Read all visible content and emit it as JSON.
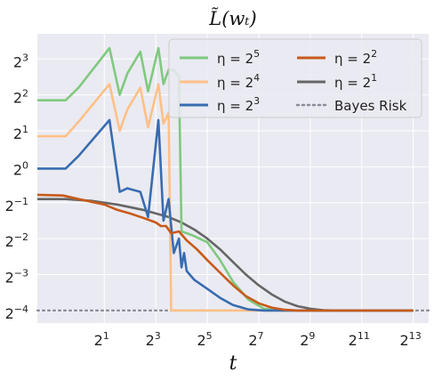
{
  "chart_data": {
    "type": "line",
    "title": "L̃(wₜ)",
    "xlabel": "t",
    "ylabel": "",
    "xscale": "log2",
    "yscale": "log2",
    "xlim_log2": [
      -1.6,
      13.6
    ],
    "ylim_log2": [
      -4.35,
      3.7
    ],
    "x_ticks": [
      {
        "exp": 1,
        "label": "2",
        "sup": "1"
      },
      {
        "exp": 3,
        "label": "2",
        "sup": "3"
      },
      {
        "exp": 5,
        "label": "2",
        "sup": "5"
      },
      {
        "exp": 7,
        "label": "2",
        "sup": "7"
      },
      {
        "exp": 9,
        "label": "2",
        "sup": "9"
      },
      {
        "exp": 11,
        "label": "2",
        "sup": "11"
      },
      {
        "exp": 13,
        "label": "2",
        "sup": "13"
      }
    ],
    "y_ticks": [
      {
        "exp": 3,
        "label": "2",
        "sup": "3"
      },
      {
        "exp": 2,
        "label": "2",
        "sup": "2"
      },
      {
        "exp": 1,
        "label": "2",
        "sup": "1"
      },
      {
        "exp": 0,
        "label": "2",
        "sup": "0"
      },
      {
        "exp": -1,
        "label": "2",
        "sup": "−1"
      },
      {
        "exp": -2,
        "label": "2",
        "sup": "−2"
      },
      {
        "exp": -3,
        "label": "2",
        "sup": "−3"
      },
      {
        "exp": -4,
        "label": "2",
        "sup": "−4"
      }
    ],
    "grid": true,
    "background": "#eaeaf2",
    "legend_position": "top-right",
    "series": [
      {
        "name": "η = 2⁵",
        "label_base": "η = 2",
        "label_sup": "5",
        "color": "#7fc97f",
        "style": "solid",
        "points_log2": [
          [
            -1.6,
            1.85
          ],
          [
            -0.5,
            1.85
          ],
          [
            0,
            2.2
          ],
          [
            1.2,
            3.3
          ],
          [
            1.6,
            2.0
          ],
          [
            1.9,
            2.6
          ],
          [
            2.4,
            3.2
          ],
          [
            2.7,
            2.1
          ],
          [
            3.1,
            3.3
          ],
          [
            3.3,
            2.3
          ],
          [
            3.5,
            2.7
          ],
          [
            3.7,
            2.7
          ],
          [
            3.9,
            2.5
          ],
          [
            4.0,
            -1.8
          ],
          [
            4.4,
            -1.9
          ],
          [
            5.0,
            -2.1
          ],
          [
            5.5,
            -2.6
          ],
          [
            6.0,
            -3.2
          ],
          [
            6.6,
            -3.7
          ],
          [
            7.2,
            -3.95
          ],
          [
            8.0,
            -4.0
          ],
          [
            13.0,
            -4.0
          ]
        ]
      },
      {
        "name": "η = 2⁴",
        "label_base": "η = 2",
        "label_sup": "4",
        "color": "#fdc086",
        "style": "solid",
        "points_log2": [
          [
            -1.6,
            0.85
          ],
          [
            -0.5,
            0.85
          ],
          [
            0,
            1.25
          ],
          [
            1.2,
            2.3
          ],
          [
            1.6,
            1.0
          ],
          [
            1.9,
            1.6
          ],
          [
            2.4,
            2.2
          ],
          [
            2.7,
            1.1
          ],
          [
            3.1,
            2.3
          ],
          [
            3.3,
            1.2
          ],
          [
            3.5,
            1.5
          ],
          [
            3.6,
            -4.0
          ],
          [
            13.0,
            -4.0
          ]
        ]
      },
      {
        "name": "η = 2³",
        "label_base": "η = 2",
        "label_sup": "3",
        "color": "#386cb0",
        "style": "solid",
        "points_log2": [
          [
            -1.6,
            -0.05
          ],
          [
            -0.5,
            -0.05
          ],
          [
            0,
            0.3
          ],
          [
            1.2,
            1.3
          ],
          [
            1.6,
            -0.7
          ],
          [
            1.9,
            -0.6
          ],
          [
            2.4,
            -0.7
          ],
          [
            2.7,
            -1.4
          ],
          [
            3.1,
            1.3
          ],
          [
            3.3,
            -1.5
          ],
          [
            3.5,
            -0.9
          ],
          [
            3.7,
            -2.4
          ],
          [
            3.9,
            -2.0
          ],
          [
            4.0,
            -2.8
          ],
          [
            4.1,
            -2.4
          ],
          [
            4.2,
            -2.9
          ],
          [
            4.5,
            -3.15
          ],
          [
            5.0,
            -3.4
          ],
          [
            5.5,
            -3.65
          ],
          [
            6.0,
            -3.85
          ],
          [
            6.6,
            -3.97
          ],
          [
            7.2,
            -4.0
          ],
          [
            13.0,
            -4.0
          ]
        ]
      },
      {
        "name": "η = 2²",
        "label_base": "η = 2",
        "label_sup": "2",
        "color": "#c85a1a",
        "style": "solid",
        "points_log2": [
          [
            -1.6,
            -0.78
          ],
          [
            -0.6,
            -0.8
          ],
          [
            0,
            -0.9
          ],
          [
            1.0,
            -1.05
          ],
          [
            1.5,
            -1.2
          ],
          [
            2.0,
            -1.3
          ],
          [
            2.5,
            -1.42
          ],
          [
            3.0,
            -1.55
          ],
          [
            3.2,
            -1.65
          ],
          [
            3.4,
            -1.65
          ],
          [
            3.6,
            -1.85
          ],
          [
            3.9,
            -1.8
          ],
          [
            4.2,
            -2.05
          ],
          [
            4.6,
            -2.3
          ],
          [
            5.0,
            -2.6
          ],
          [
            5.5,
            -2.95
          ],
          [
            6.0,
            -3.3
          ],
          [
            6.5,
            -3.6
          ],
          [
            7.0,
            -3.8
          ],
          [
            7.5,
            -3.92
          ],
          [
            8.0,
            -3.98
          ],
          [
            8.5,
            -4.0
          ],
          [
            13.0,
            -4.0
          ]
        ]
      },
      {
        "name": "η = 2¹",
        "label_base": "η = 2",
        "label_sup": "1",
        "color": "#666666",
        "style": "solid",
        "points_log2": [
          [
            -1.6,
            -0.9
          ],
          [
            -0.5,
            -0.9
          ],
          [
            0.5,
            -0.95
          ],
          [
            1.5,
            -1.05
          ],
          [
            2.5,
            -1.2
          ],
          [
            3.5,
            -1.4
          ],
          [
            4.0,
            -1.55
          ],
          [
            4.5,
            -1.75
          ],
          [
            5.0,
            -2.0
          ],
          [
            5.5,
            -2.3
          ],
          [
            6.0,
            -2.65
          ],
          [
            6.5,
            -3.0
          ],
          [
            7.0,
            -3.3
          ],
          [
            7.5,
            -3.55
          ],
          [
            8.0,
            -3.75
          ],
          [
            8.5,
            -3.88
          ],
          [
            9.0,
            -3.95
          ],
          [
            9.5,
            -3.99
          ],
          [
            10.0,
            -4.0
          ],
          [
            13.0,
            -4.0
          ]
        ]
      },
      {
        "name": "Bayes Risk",
        "label_base": "Bayes Risk",
        "label_sup": "",
        "color": "#8c8c99",
        "style": "dotted",
        "points_log2": [
          [
            -1.6,
            -4.0
          ],
          [
            13.6,
            -4.0
          ]
        ]
      }
    ]
  }
}
